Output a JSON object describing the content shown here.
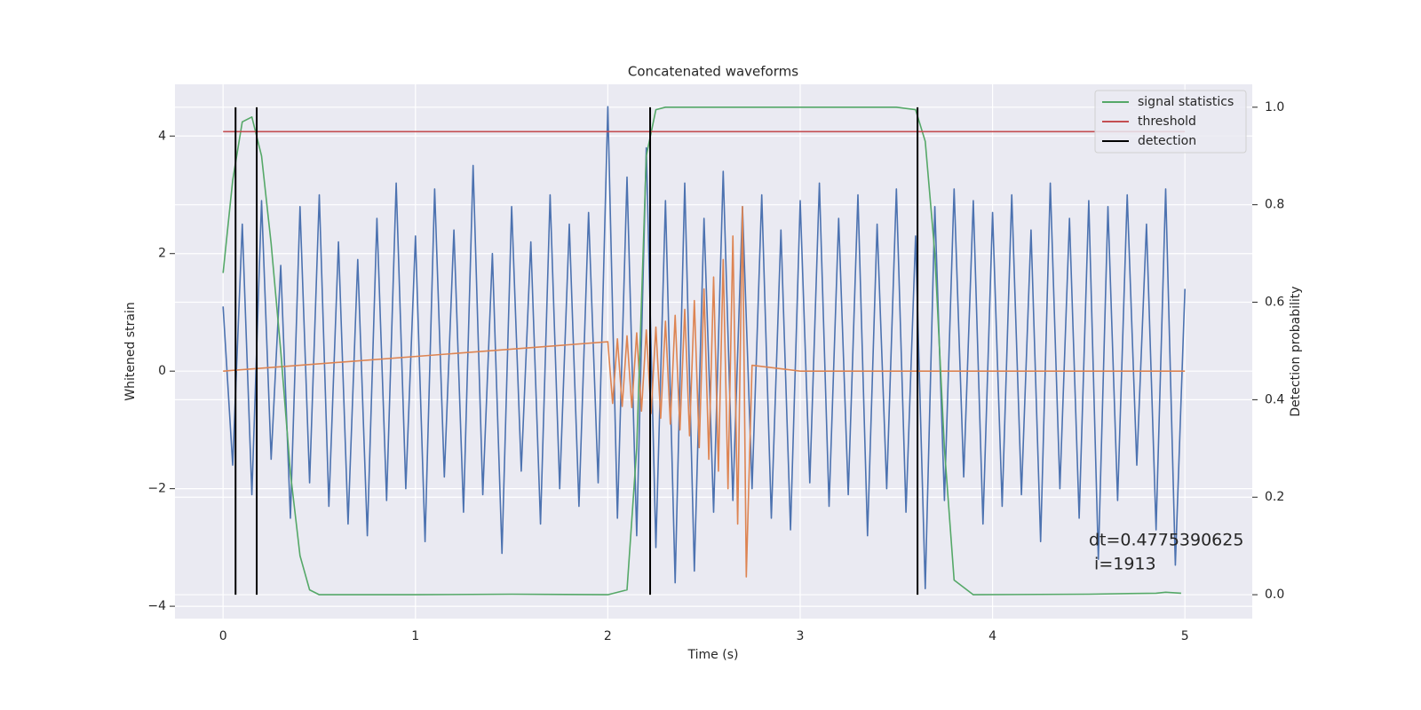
{
  "chart_data": {
    "type": "line",
    "title": "Concatenated waveforms",
    "xlabel": "Time (s)",
    "ylabel": "Whitened strain",
    "y2label": "Detection probability",
    "xlim": [
      -0.25,
      5.35
    ],
    "ylim": [
      -4.21,
      4.88
    ],
    "y2lim": [
      -0.049,
      1.047
    ],
    "xticks": [
      0,
      1,
      2,
      3,
      4,
      5
    ],
    "yticks": [
      {
        "value": -4,
        "label": "−4"
      },
      {
        "value": -2,
        "label": "−2"
      },
      0,
      2,
      4
    ],
    "y2ticks": [
      {
        "value": 0,
        "label": "0.0"
      },
      0.2,
      0.4,
      0.6,
      0.8,
      {
        "value": 1,
        "label": "1.0"
      }
    ],
    "grid": true,
    "legend": "upper right",
    "annotation": [
      "dt=0.4775390625",
      " i=1913"
    ],
    "series": [
      {
        "color": "#4c72b0",
        "axis": "y",
        "style": "line",
        "x": [
          0,
          0.05,
          0.1,
          0.15,
          0.2,
          0.25,
          0.3,
          0.35,
          0.4,
          0.45,
          0.5,
          0.55,
          0.6,
          0.65,
          0.7,
          0.75,
          0.8,
          0.85,
          0.9,
          0.95,
          1.0,
          1.05,
          1.1,
          1.15,
          1.2,
          1.25,
          1.3,
          1.35,
          1.4,
          1.45,
          1.5,
          1.55,
          1.6,
          1.65,
          1.7,
          1.75,
          1.8,
          1.85,
          1.9,
          1.95,
          2.0,
          2.05,
          2.1,
          2.15,
          2.2,
          2.25,
          2.3,
          2.35,
          2.4,
          2.45,
          2.5,
          2.55,
          2.6,
          2.65,
          2.7,
          2.75,
          2.8,
          2.85,
          2.9,
          2.95,
          3.0,
          3.05,
          3.1,
          3.15,
          3.2,
          3.25,
          3.3,
          3.35,
          3.4,
          3.45,
          3.5,
          3.55,
          3.6,
          3.65,
          3.7,
          3.75,
          3.8,
          3.85,
          3.9,
          3.95,
          4.0,
          4.05,
          4.1,
          4.15,
          4.2,
          4.25,
          4.3,
          4.35,
          4.4,
          4.45,
          4.5,
          4.55,
          4.6,
          4.65,
          4.7,
          4.75,
          4.8,
          4.85,
          4.9,
          4.95,
          5.0
        ],
        "values": [
          1.1,
          -1.6,
          2.5,
          -2.1,
          2.9,
          -1.5,
          1.8,
          -2.5,
          2.8,
          -1.9,
          3.0,
          -2.3,
          2.2,
          -2.6,
          1.9,
          -2.8,
          2.6,
          -2.2,
          3.2,
          -2.0,
          2.3,
          -2.9,
          3.1,
          -1.8,
          2.4,
          -2.4,
          3.5,
          -2.1,
          2.0,
          -3.1,
          2.8,
          -1.7,
          2.2,
          -2.6,
          3.0,
          -2.0,
          2.5,
          -2.3,
          2.7,
          -1.9,
          4.5,
          -2.5,
          3.3,
          -2.8,
          3.8,
          -3.0,
          2.9,
          -3.6,
          3.2,
          -3.4,
          2.6,
          -2.4,
          3.4,
          -2.2,
          2.8,
          -2.0,
          3.0,
          -2.5,
          2.4,
          -2.7,
          2.9,
          -1.9,
          3.2,
          -2.3,
          2.6,
          -2.1,
          3.0,
          -2.8,
          2.5,
          -2.0,
          3.1,
          -2.4,
          2.3,
          -3.7,
          2.8,
          -2.2,
          3.1,
          -1.8,
          2.9,
          -2.6,
          2.7,
          -2.3,
          3.0,
          -2.1,
          2.4,
          -2.9,
          3.2,
          -2.0,
          2.6,
          -2.5,
          2.9,
          -3.2,
          2.8,
          -2.2,
          3.0,
          -1.6,
          2.5,
          -2.7,
          3.1,
          -3.3,
          1.4
        ]
      },
      {
        "color": "#dd8452",
        "axis": "y",
        "style": "line",
        "x": [
          0,
          2.0,
          2.025,
          2.05,
          2.075,
          2.1,
          2.125,
          2.15,
          2.175,
          2.2,
          2.225,
          2.25,
          2.275,
          2.3,
          2.325,
          2.35,
          2.375,
          2.4,
          2.425,
          2.45,
          2.475,
          2.5,
          2.525,
          2.55,
          2.575,
          2.6,
          2.625,
          2.65,
          2.675,
          2.7,
          2.72,
          2.75,
          3.0,
          5
        ],
        "values": [
          0,
          0.5,
          -0.55,
          0.55,
          -0.6,
          0.6,
          -0.62,
          0.65,
          -0.68,
          0.7,
          -0.72,
          0.75,
          -0.8,
          0.85,
          -0.9,
          0.95,
          -1.0,
          1.05,
          -1.1,
          1.2,
          -1.3,
          1.4,
          -1.5,
          1.6,
          -1.7,
          1.9,
          -2.0,
          2.3,
          -2.6,
          2.8,
          -3.5,
          0.1,
          0,
          0
        ]
      },
      {
        "name": "signal statistics",
        "color": "#55a868",
        "axis": "y2",
        "style": "line",
        "x": [
          0,
          0.05,
          0.1,
          0.15,
          0.2,
          0.25,
          0.3,
          0.35,
          0.4,
          0.45,
          0.5,
          1.0,
          1.5,
          2.0,
          2.1,
          2.15,
          2.2,
          2.25,
          2.3,
          3.0,
          3.5,
          3.6,
          3.65,
          3.7,
          3.75,
          3.8,
          3.9,
          4.5,
          4.85,
          4.9,
          4.98
        ],
        "values": [
          0.66,
          0.85,
          0.97,
          0.98,
          0.9,
          0.72,
          0.5,
          0.25,
          0.08,
          0.01,
          0,
          0,
          0.001,
          0,
          0.01,
          0.3,
          0.9,
          0.995,
          1.0,
          1.0,
          1.0,
          0.995,
          0.93,
          0.7,
          0.3,
          0.03,
          0,
          0.001,
          0.003,
          0.005,
          0.003
        ]
      },
      {
        "name": "threshold",
        "color": "#c44e52",
        "axis": "y2",
        "style": "line",
        "x": [
          0,
          5
        ],
        "values": [
          0.95,
          0.95
        ]
      },
      {
        "name": "detection",
        "color": "#000000",
        "axis": "y2",
        "style": "vline",
        "x": [
          0.065,
          0.175,
          2.22,
          3.61
        ],
        "ymin": 0,
        "ymax": 1
      }
    ]
  }
}
